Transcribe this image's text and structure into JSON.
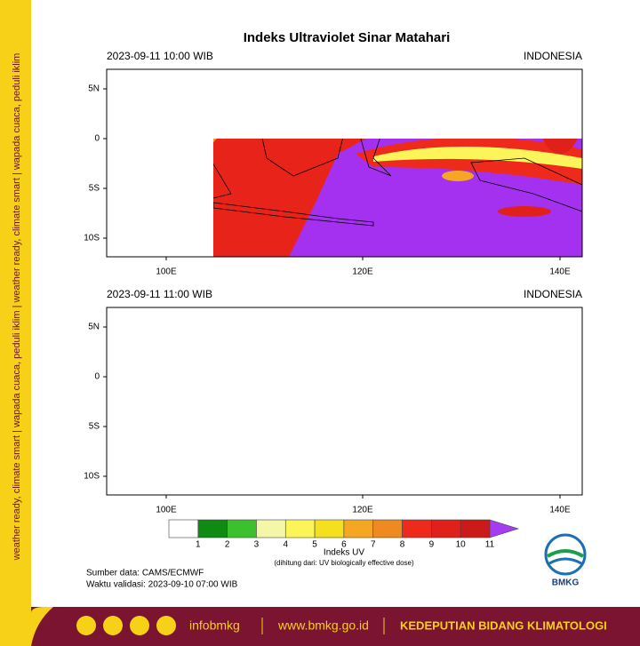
{
  "title": "Indeks Ultraviolet Sinar Matahari",
  "panels": [
    {
      "datetime": "2023-09-11  10:00 WIB",
      "region": "INDONESIA",
      "lat_labels": [
        "5N",
        "0",
        "5S",
        "10S"
      ],
      "lon_labels": [
        "100E",
        "120E",
        "140E"
      ]
    },
    {
      "datetime": "2023-09-11  11:00 WIB",
      "region": "INDONESIA",
      "lat_labels": [
        "5N",
        "0",
        "5S",
        "10S"
      ],
      "lon_labels": [
        "100E",
        "120E",
        "140E"
      ]
    }
  ],
  "colorbar": {
    "ticks": [
      1,
      2,
      3,
      4,
      5,
      6,
      7,
      8,
      9,
      10,
      11
    ],
    "colors": [
      "#ffffff",
      "#0f8a12",
      "#3cc02e",
      "#f4f7a8",
      "#fbf55a",
      "#f5e020",
      "#f5a623",
      "#ee8a20",
      "#ee2a1c",
      "#e0201a",
      "#cc1a1a",
      "#a43cf0"
    ],
    "label": "Indeks UV",
    "note": "(dihitung dari: UV biologically effective dose)"
  },
  "source": "Sumber data: CAMS/ECMWF",
  "valid": "Waktu validasi: 2023-09-10 07:00 WIB",
  "logo": "BMKG",
  "side_text": "weather ready, climate smart  |  wapada cuaca, peduli iklim  |  weather ready, climate smart  |  wapada cuaca, peduli iklim",
  "footer": {
    "social": "infobmkg",
    "website": "www.bmkg.go.id",
    "unit": "KEDEPUTIAN BIDANG KLIMATOLOGI"
  }
}
